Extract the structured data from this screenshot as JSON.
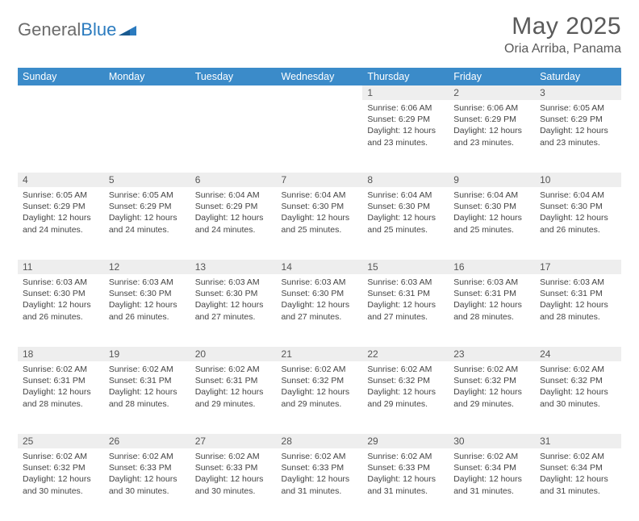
{
  "logo": {
    "text1": "General",
    "text2": "Blue"
  },
  "title": "May 2025",
  "location": "Oria Arriba, Panama",
  "header_bg": "#3b8bc9",
  "daynum_bg": "#eeeeee",
  "weekdays": [
    "Sunday",
    "Monday",
    "Tuesday",
    "Wednesday",
    "Thursday",
    "Friday",
    "Saturday"
  ],
  "weeks": [
    {
      "nums": [
        "",
        "",
        "",
        "",
        "1",
        "2",
        "3"
      ],
      "cells": [
        null,
        null,
        null,
        null,
        {
          "sunrise": "Sunrise: 6:06 AM",
          "sunset": "Sunset: 6:29 PM",
          "daylight": "Daylight: 12 hours and 23 minutes."
        },
        {
          "sunrise": "Sunrise: 6:06 AM",
          "sunset": "Sunset: 6:29 PM",
          "daylight": "Daylight: 12 hours and 23 minutes."
        },
        {
          "sunrise": "Sunrise: 6:05 AM",
          "sunset": "Sunset: 6:29 PM",
          "daylight": "Daylight: 12 hours and 23 minutes."
        }
      ]
    },
    {
      "nums": [
        "4",
        "5",
        "6",
        "7",
        "8",
        "9",
        "10"
      ],
      "cells": [
        {
          "sunrise": "Sunrise: 6:05 AM",
          "sunset": "Sunset: 6:29 PM",
          "daylight": "Daylight: 12 hours and 24 minutes."
        },
        {
          "sunrise": "Sunrise: 6:05 AM",
          "sunset": "Sunset: 6:29 PM",
          "daylight": "Daylight: 12 hours and 24 minutes."
        },
        {
          "sunrise": "Sunrise: 6:04 AM",
          "sunset": "Sunset: 6:29 PM",
          "daylight": "Daylight: 12 hours and 24 minutes."
        },
        {
          "sunrise": "Sunrise: 6:04 AM",
          "sunset": "Sunset: 6:30 PM",
          "daylight": "Daylight: 12 hours and 25 minutes."
        },
        {
          "sunrise": "Sunrise: 6:04 AM",
          "sunset": "Sunset: 6:30 PM",
          "daylight": "Daylight: 12 hours and 25 minutes."
        },
        {
          "sunrise": "Sunrise: 6:04 AM",
          "sunset": "Sunset: 6:30 PM",
          "daylight": "Daylight: 12 hours and 25 minutes."
        },
        {
          "sunrise": "Sunrise: 6:04 AM",
          "sunset": "Sunset: 6:30 PM",
          "daylight": "Daylight: 12 hours and 26 minutes."
        }
      ]
    },
    {
      "nums": [
        "11",
        "12",
        "13",
        "14",
        "15",
        "16",
        "17"
      ],
      "cells": [
        {
          "sunrise": "Sunrise: 6:03 AM",
          "sunset": "Sunset: 6:30 PM",
          "daylight": "Daylight: 12 hours and 26 minutes."
        },
        {
          "sunrise": "Sunrise: 6:03 AM",
          "sunset": "Sunset: 6:30 PM",
          "daylight": "Daylight: 12 hours and 26 minutes."
        },
        {
          "sunrise": "Sunrise: 6:03 AM",
          "sunset": "Sunset: 6:30 PM",
          "daylight": "Daylight: 12 hours and 27 minutes."
        },
        {
          "sunrise": "Sunrise: 6:03 AM",
          "sunset": "Sunset: 6:30 PM",
          "daylight": "Daylight: 12 hours and 27 minutes."
        },
        {
          "sunrise": "Sunrise: 6:03 AM",
          "sunset": "Sunset: 6:31 PM",
          "daylight": "Daylight: 12 hours and 27 minutes."
        },
        {
          "sunrise": "Sunrise: 6:03 AM",
          "sunset": "Sunset: 6:31 PM",
          "daylight": "Daylight: 12 hours and 28 minutes."
        },
        {
          "sunrise": "Sunrise: 6:03 AM",
          "sunset": "Sunset: 6:31 PM",
          "daylight": "Daylight: 12 hours and 28 minutes."
        }
      ]
    },
    {
      "nums": [
        "18",
        "19",
        "20",
        "21",
        "22",
        "23",
        "24"
      ],
      "cells": [
        {
          "sunrise": "Sunrise: 6:02 AM",
          "sunset": "Sunset: 6:31 PM",
          "daylight": "Daylight: 12 hours and 28 minutes."
        },
        {
          "sunrise": "Sunrise: 6:02 AM",
          "sunset": "Sunset: 6:31 PM",
          "daylight": "Daylight: 12 hours and 28 minutes."
        },
        {
          "sunrise": "Sunrise: 6:02 AM",
          "sunset": "Sunset: 6:31 PM",
          "daylight": "Daylight: 12 hours and 29 minutes."
        },
        {
          "sunrise": "Sunrise: 6:02 AM",
          "sunset": "Sunset: 6:32 PM",
          "daylight": "Daylight: 12 hours and 29 minutes."
        },
        {
          "sunrise": "Sunrise: 6:02 AM",
          "sunset": "Sunset: 6:32 PM",
          "daylight": "Daylight: 12 hours and 29 minutes."
        },
        {
          "sunrise": "Sunrise: 6:02 AM",
          "sunset": "Sunset: 6:32 PM",
          "daylight": "Daylight: 12 hours and 29 minutes."
        },
        {
          "sunrise": "Sunrise: 6:02 AM",
          "sunset": "Sunset: 6:32 PM",
          "daylight": "Daylight: 12 hours and 30 minutes."
        }
      ]
    },
    {
      "nums": [
        "25",
        "26",
        "27",
        "28",
        "29",
        "30",
        "31"
      ],
      "cells": [
        {
          "sunrise": "Sunrise: 6:02 AM",
          "sunset": "Sunset: 6:32 PM",
          "daylight": "Daylight: 12 hours and 30 minutes."
        },
        {
          "sunrise": "Sunrise: 6:02 AM",
          "sunset": "Sunset: 6:33 PM",
          "daylight": "Daylight: 12 hours and 30 minutes."
        },
        {
          "sunrise": "Sunrise: 6:02 AM",
          "sunset": "Sunset: 6:33 PM",
          "daylight": "Daylight: 12 hours and 30 minutes."
        },
        {
          "sunrise": "Sunrise: 6:02 AM",
          "sunset": "Sunset: 6:33 PM",
          "daylight": "Daylight: 12 hours and 31 minutes."
        },
        {
          "sunrise": "Sunrise: 6:02 AM",
          "sunset": "Sunset: 6:33 PM",
          "daylight": "Daylight: 12 hours and 31 minutes."
        },
        {
          "sunrise": "Sunrise: 6:02 AM",
          "sunset": "Sunset: 6:34 PM",
          "daylight": "Daylight: 12 hours and 31 minutes."
        },
        {
          "sunrise": "Sunrise: 6:02 AM",
          "sunset": "Sunset: 6:34 PM",
          "daylight": "Daylight: 12 hours and 31 minutes."
        }
      ]
    }
  ]
}
